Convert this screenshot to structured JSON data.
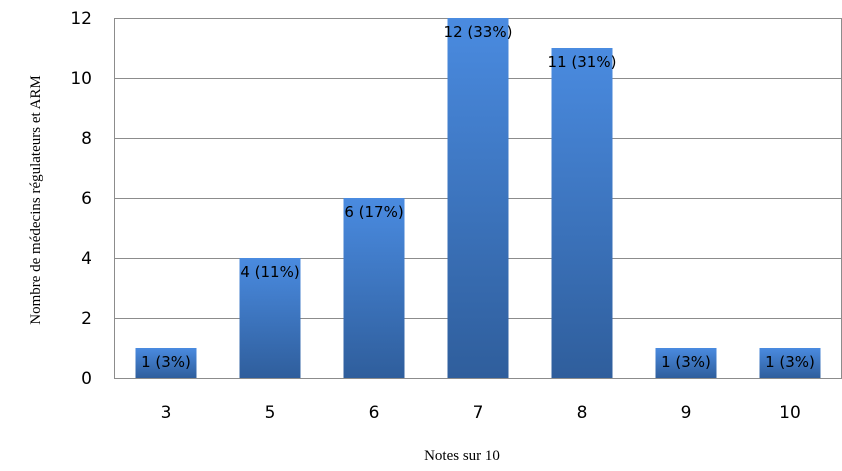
{
  "chart_data": {
    "type": "bar",
    "categories": [
      "3",
      "5",
      "6",
      "7",
      "8",
      "9",
      "10"
    ],
    "values": [
      1,
      4,
      6,
      12,
      11,
      1,
      1
    ],
    "data_labels": [
      "1 (3%)",
      "4 (11%)",
      "6 (17%)",
      "12 (33%)",
      "11 (31%)",
      "1 (3%)",
      "1 (3%)"
    ],
    "title": "",
    "xlabel": "Notes sur 10",
    "ylabel": "Nombre de médecins régulateurs et ARM",
    "ylim": [
      0,
      12
    ],
    "yticks": [
      0,
      2,
      4,
      6,
      8,
      10,
      12
    ],
    "grid": true,
    "legend": "none",
    "bar_color_light": "#4a8be0",
    "bar_color_dark": "#2f5e9c"
  }
}
